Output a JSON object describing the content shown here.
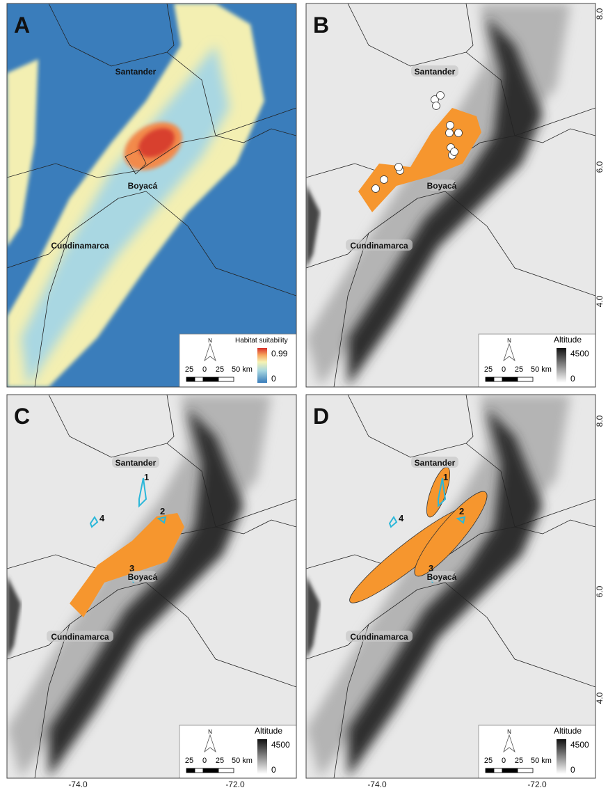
{
  "panels": [
    {
      "letter": "A",
      "regions": [
        "Santander",
        "Boyacá",
        "Cundinamarca"
      ],
      "legend": {
        "north": "N",
        "title": "Habitat suitability",
        "max": "0.99",
        "min": "0",
        "scale": [
          "25",
          "0",
          "25",
          "50 km"
        ]
      }
    },
    {
      "letter": "B",
      "regions": [
        "Santander",
        "Boyacá",
        "Cundinamarca"
      ],
      "legend": {
        "north": "N",
        "title": "Altitude",
        "max": "4500",
        "min": "0",
        "scale": [
          "25",
          "0",
          "25",
          "50 km"
        ]
      }
    },
    {
      "letter": "C",
      "regions": [
        "Santander",
        "Boyacá",
        "Cundinamarca"
      ],
      "numbers": [
        "1",
        "2",
        "3",
        "4"
      ],
      "legend": {
        "north": "N",
        "title": "Altitude",
        "max": "4500",
        "min": "0",
        "scale": [
          "25",
          "0",
          "25",
          "50 km"
        ]
      }
    },
    {
      "letter": "D",
      "regions": [
        "Santander",
        "Boyacá",
        "Cundinamarca"
      ],
      "numbers": [
        "1",
        "2",
        "3",
        "4"
      ],
      "legend": {
        "north": "N",
        "title": "Altitude",
        "max": "4500",
        "min": "0",
        "scale": [
          "25",
          "0",
          "25",
          "50 km"
        ]
      }
    }
  ],
  "y_axis": [
    "8.0",
    "6.0",
    "4.0"
  ],
  "x_axis": [
    "-74.0",
    "-72.0"
  ]
}
